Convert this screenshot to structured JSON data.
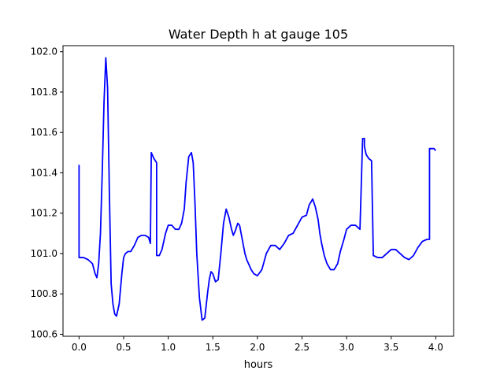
{
  "chart_data": {
    "type": "line",
    "title": "Water Depth h at gauge 105",
    "xlabel": "hours",
    "ylabel": "",
    "xlim": [
      -0.18,
      4.2
    ],
    "ylim": [
      100.59,
      102.03
    ],
    "xticks": [
      0.0,
      0.5,
      1.0,
      1.5,
      2.0,
      2.5,
      3.0,
      3.5,
      4.0
    ],
    "xtick_labels": [
      "0.0",
      "0.5",
      "1.0",
      "1.5",
      "2.0",
      "2.5",
      "3.0",
      "3.5",
      "4.0"
    ],
    "yticks": [
      100.6,
      100.8,
      101.0,
      101.2,
      101.4,
      101.6,
      101.8,
      102.0
    ],
    "ytick_labels": [
      "100.6",
      "100.8",
      "101.0",
      "101.2",
      "101.4",
      "101.6",
      "101.8",
      "102.0"
    ],
    "grid": false,
    "series": [
      {
        "color": "#0000ff",
        "x": [
          0.0,
          0.0,
          0.05,
          0.1,
          0.15,
          0.18,
          0.2,
          0.22,
          0.24,
          0.26,
          0.28,
          0.3,
          0.32,
          0.34,
          0.36,
          0.38,
          0.4,
          0.42,
          0.45,
          0.48,
          0.5,
          0.52,
          0.55,
          0.58,
          0.62,
          0.66,
          0.7,
          0.74,
          0.78,
          0.8,
          0.81,
          0.81,
          0.84,
          0.87,
          0.87,
          0.9,
          0.93,
          0.97,
          1.0,
          1.04,
          1.08,
          1.12,
          1.15,
          1.18,
          1.2,
          1.23,
          1.26,
          1.28,
          1.3,
          1.32,
          1.35,
          1.38,
          1.41,
          1.44,
          1.46,
          1.48,
          1.5,
          1.53,
          1.56,
          1.59,
          1.62,
          1.65,
          1.68,
          1.71,
          1.73,
          1.75,
          1.78,
          1.8,
          1.83,
          1.86,
          1.88,
          1.9,
          1.93,
          1.96,
          2.0,
          2.05,
          2.1,
          2.15,
          2.2,
          2.25,
          2.3,
          2.35,
          2.4,
          2.45,
          2.5,
          2.55,
          2.58,
          2.62,
          2.65,
          2.68,
          2.7,
          2.72,
          2.75,
          2.78,
          2.82,
          2.86,
          2.9,
          2.93,
          2.97,
          3.0,
          3.05,
          3.1,
          3.15,
          3.18,
          3.2,
          3.2,
          3.22,
          3.25,
          3.28,
          3.3,
          3.3,
          3.35,
          3.4,
          3.45,
          3.5,
          3.55,
          3.6,
          3.65,
          3.7,
          3.75,
          3.8,
          3.85,
          3.9,
          3.93,
          3.93,
          3.98,
          4.0
        ],
        "y": [
          101.44,
          100.98,
          100.98,
          100.97,
          100.95,
          100.9,
          100.88,
          100.95,
          101.1,
          101.4,
          101.75,
          101.97,
          101.82,
          101.3,
          100.85,
          100.75,
          100.7,
          100.69,
          100.75,
          100.9,
          100.98,
          101.0,
          101.01,
          101.01,
          101.04,
          101.08,
          101.09,
          101.09,
          101.08,
          101.05,
          101.5,
          101.5,
          101.47,
          101.45,
          100.99,
          100.99,
          101.02,
          101.1,
          101.14,
          101.14,
          101.12,
          101.12,
          101.15,
          101.22,
          101.35,
          101.48,
          101.5,
          101.45,
          101.25,
          101.0,
          100.78,
          100.67,
          100.68,
          100.8,
          100.87,
          100.91,
          100.9,
          100.86,
          100.87,
          101.0,
          101.15,
          101.22,
          101.18,
          101.12,
          101.09,
          101.11,
          101.15,
          101.14,
          101.07,
          101.0,
          100.97,
          100.95,
          100.92,
          100.9,
          100.89,
          100.92,
          101.0,
          101.04,
          101.04,
          101.02,
          101.05,
          101.09,
          101.1,
          101.14,
          101.18,
          101.19,
          101.24,
          101.27,
          101.23,
          101.17,
          101.1,
          101.05,
          100.99,
          100.95,
          100.92,
          100.92,
          100.95,
          101.01,
          101.07,
          101.12,
          101.14,
          101.14,
          101.12,
          101.57,
          101.57,
          101.53,
          101.49,
          101.47,
          101.46,
          100.99,
          100.99,
          100.98,
          100.98,
          101.0,
          101.02,
          101.02,
          101.0,
          100.98,
          100.97,
          100.99,
          101.03,
          101.06,
          101.07,
          101.07,
          101.52,
          101.52,
          101.51
        ]
      }
    ]
  }
}
